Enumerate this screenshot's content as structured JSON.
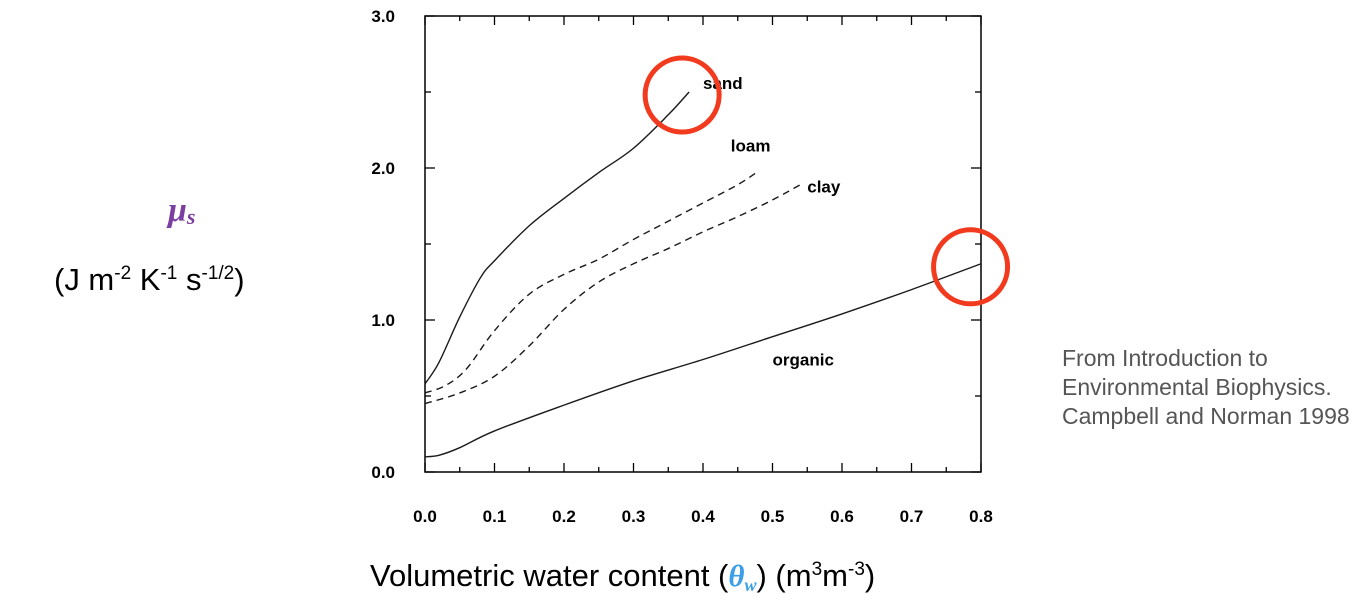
{
  "chart_data": {
    "type": "line",
    "title": "",
    "xlabel": {
      "prefix": "Volumetric water content (",
      "symbol": "θ",
      "symbol_sub": "w",
      "mid": ") (m",
      "sup1": "3",
      "m2": "m",
      "sup2": "-3",
      "end": ")"
    },
    "ylabel": {
      "symbol": "μ",
      "symbol_sub": "s",
      "unit_a": "(J m",
      "sup_a": "-2",
      "unit_b": " K",
      "sup_b": "-1",
      "unit_c": " s",
      "sup_c": "-1/2",
      "unit_d": ")"
    },
    "xlim": [
      0,
      0.8
    ],
    "ylim": [
      0,
      3.0
    ],
    "x_major_ticks": [
      0.0,
      0.1,
      0.2,
      0.3,
      0.4,
      0.5,
      0.6,
      0.7,
      0.8
    ],
    "x_tick_labels": [
      "0.0",
      "0.1",
      "0.2",
      "0.3",
      "0.4",
      "0.5",
      "0.6",
      "0.7",
      "0.8"
    ],
    "y_major_ticks": [
      0.0,
      1.0,
      2.0,
      3.0
    ],
    "y_tick_labels": [
      "0.0",
      "1.0",
      "2.0",
      "3.0"
    ],
    "grid": false,
    "series": [
      {
        "name": "sand",
        "style": "solid",
        "label_at": [
          0.4,
          2.52
        ],
        "points": [
          [
            0.0,
            0.58
          ],
          [
            0.02,
            0.72
          ],
          [
            0.05,
            1.02
          ],
          [
            0.08,
            1.28
          ],
          [
            0.1,
            1.39
          ],
          [
            0.15,
            1.62
          ],
          [
            0.2,
            1.8
          ],
          [
            0.25,
            1.97
          ],
          [
            0.3,
            2.13
          ],
          [
            0.35,
            2.35
          ],
          [
            0.38,
            2.5
          ]
        ]
      },
      {
        "name": "loam",
        "style": "dashed",
        "label_at": [
          0.44,
          2.11
        ],
        "points": [
          [
            0.0,
            0.52
          ],
          [
            0.03,
            0.57
          ],
          [
            0.06,
            0.68
          ],
          [
            0.1,
            0.93
          ],
          [
            0.15,
            1.17
          ],
          [
            0.2,
            1.3
          ],
          [
            0.25,
            1.4
          ],
          [
            0.3,
            1.53
          ],
          [
            0.35,
            1.65
          ],
          [
            0.4,
            1.77
          ],
          [
            0.45,
            1.89
          ],
          [
            0.48,
            1.98
          ]
        ]
      },
      {
        "name": "clay",
        "style": "dashed",
        "label_at": [
          0.55,
          1.84
        ],
        "points": [
          [
            0.0,
            0.45
          ],
          [
            0.05,
            0.52
          ],
          [
            0.1,
            0.63
          ],
          [
            0.15,
            0.83
          ],
          [
            0.2,
            1.07
          ],
          [
            0.25,
            1.25
          ],
          [
            0.3,
            1.37
          ],
          [
            0.35,
            1.47
          ],
          [
            0.4,
            1.58
          ],
          [
            0.45,
            1.68
          ],
          [
            0.5,
            1.79
          ],
          [
            0.54,
            1.89
          ]
        ]
      },
      {
        "name": "organic",
        "style": "solid",
        "label_at": [
          0.5,
          0.7
        ],
        "points": [
          [
            0.0,
            0.1
          ],
          [
            0.02,
            0.11
          ],
          [
            0.05,
            0.16
          ],
          [
            0.1,
            0.27
          ],
          [
            0.2,
            0.44
          ],
          [
            0.3,
            0.6
          ],
          [
            0.4,
            0.74
          ],
          [
            0.5,
            0.89
          ],
          [
            0.6,
            1.04
          ],
          [
            0.7,
            1.2
          ],
          [
            0.8,
            1.37
          ]
        ]
      }
    ],
    "highlight_circles": [
      {
        "target": "sand-endpoint",
        "x": 0.37,
        "y": 2.48,
        "color": "#f23a1e"
      },
      {
        "target": "organic-endpoint",
        "x": 0.785,
        "y": 1.35,
        "color": "#f23a1e"
      }
    ]
  },
  "citation": "From Introduction to Environmental Biophysics. Campbell and Norman 1998"
}
